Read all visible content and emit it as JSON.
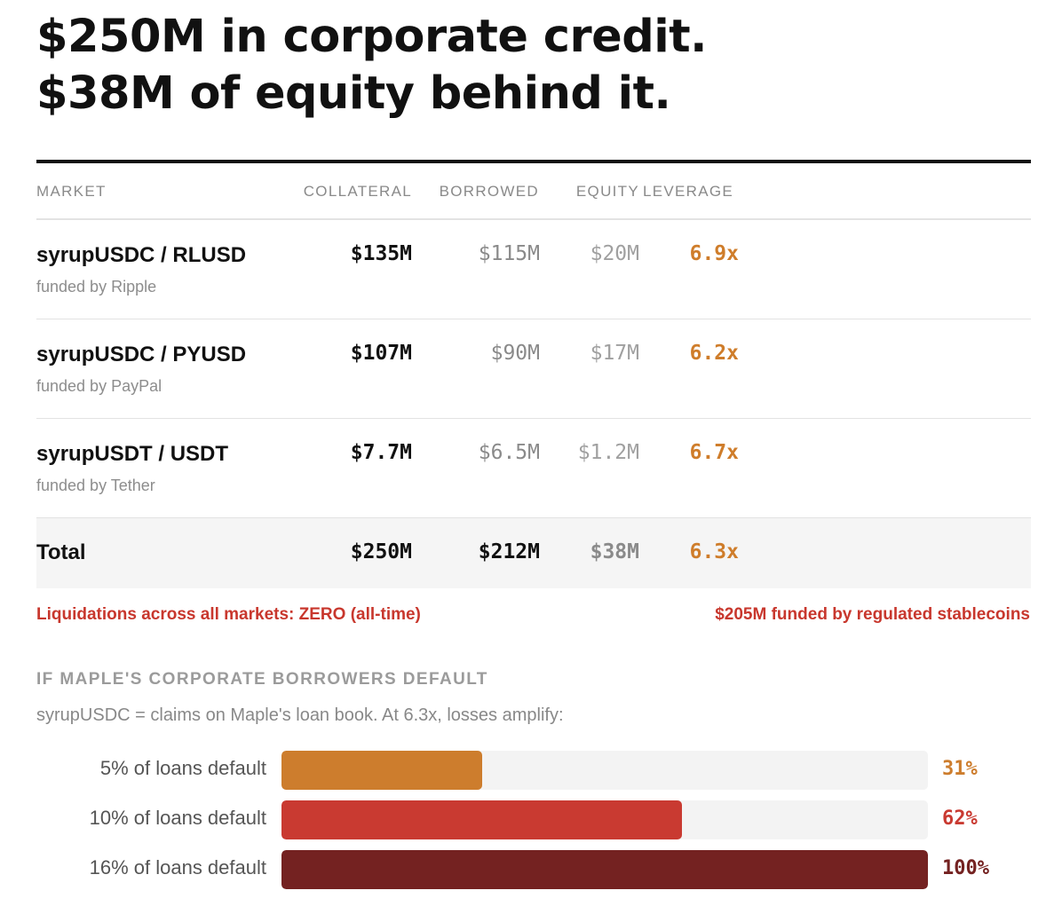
{
  "title": {
    "line1": "$250M in corporate credit.",
    "line2": "$38M of equity behind it."
  },
  "table": {
    "headers": {
      "market": "MARKET",
      "collateral": "COLLATERAL",
      "borrowed": "BORROWED",
      "equity": "EQUITY",
      "leverage": "LEVERAGE"
    },
    "rows": [
      {
        "market": "syrupUSDC / RLUSD",
        "funded": "funded by Ripple",
        "collateral": "$135M",
        "borrowed": "$115M",
        "equity": "$20M",
        "leverage": "6.9x"
      },
      {
        "market": "syrupUSDC / PYUSD",
        "funded": "funded by PayPal",
        "collateral": "$107M",
        "borrowed": "$90M",
        "equity": "$17M",
        "leverage": "6.2x"
      },
      {
        "market": "syrupUSDT / USDT",
        "funded": "funded by Tether",
        "collateral": "$7.7M",
        "borrowed": "$6.5M",
        "equity": "$1.2M",
        "leverage": "6.7x"
      }
    ],
    "total": {
      "market": "Total",
      "collateral": "$250M",
      "borrowed": "$212M",
      "equity": "$38M",
      "leverage": "6.3x"
    }
  },
  "notes": {
    "liquidations": "Liquidations across all markets: ZERO (all-time)",
    "funded": "$205M funded by regulated stablecoins"
  },
  "chart_data": {
    "type": "bar",
    "title": "IF MAPLE'S CORPORATE BORROWERS DEFAULT",
    "subtitle": "syrupUSDC = claims on Maple's loan book. At 6.3x, losses amplify:",
    "orientation": "horizontal",
    "categories": [
      "5% of loans default",
      "10% of loans default",
      "16% of loans default"
    ],
    "values": [
      31,
      62,
      100
    ],
    "value_labels": [
      "31%",
      "62%",
      "100%"
    ],
    "xlim": [
      0,
      100
    ],
    "colors": [
      "#cd7d2d",
      "#c93a31",
      "#742221"
    ]
  },
  "colors": {
    "accent_orange": "#cf7d2b",
    "accent_red": "#c8372d",
    "dark_red": "#742221",
    "track": "#f3f3f3"
  }
}
